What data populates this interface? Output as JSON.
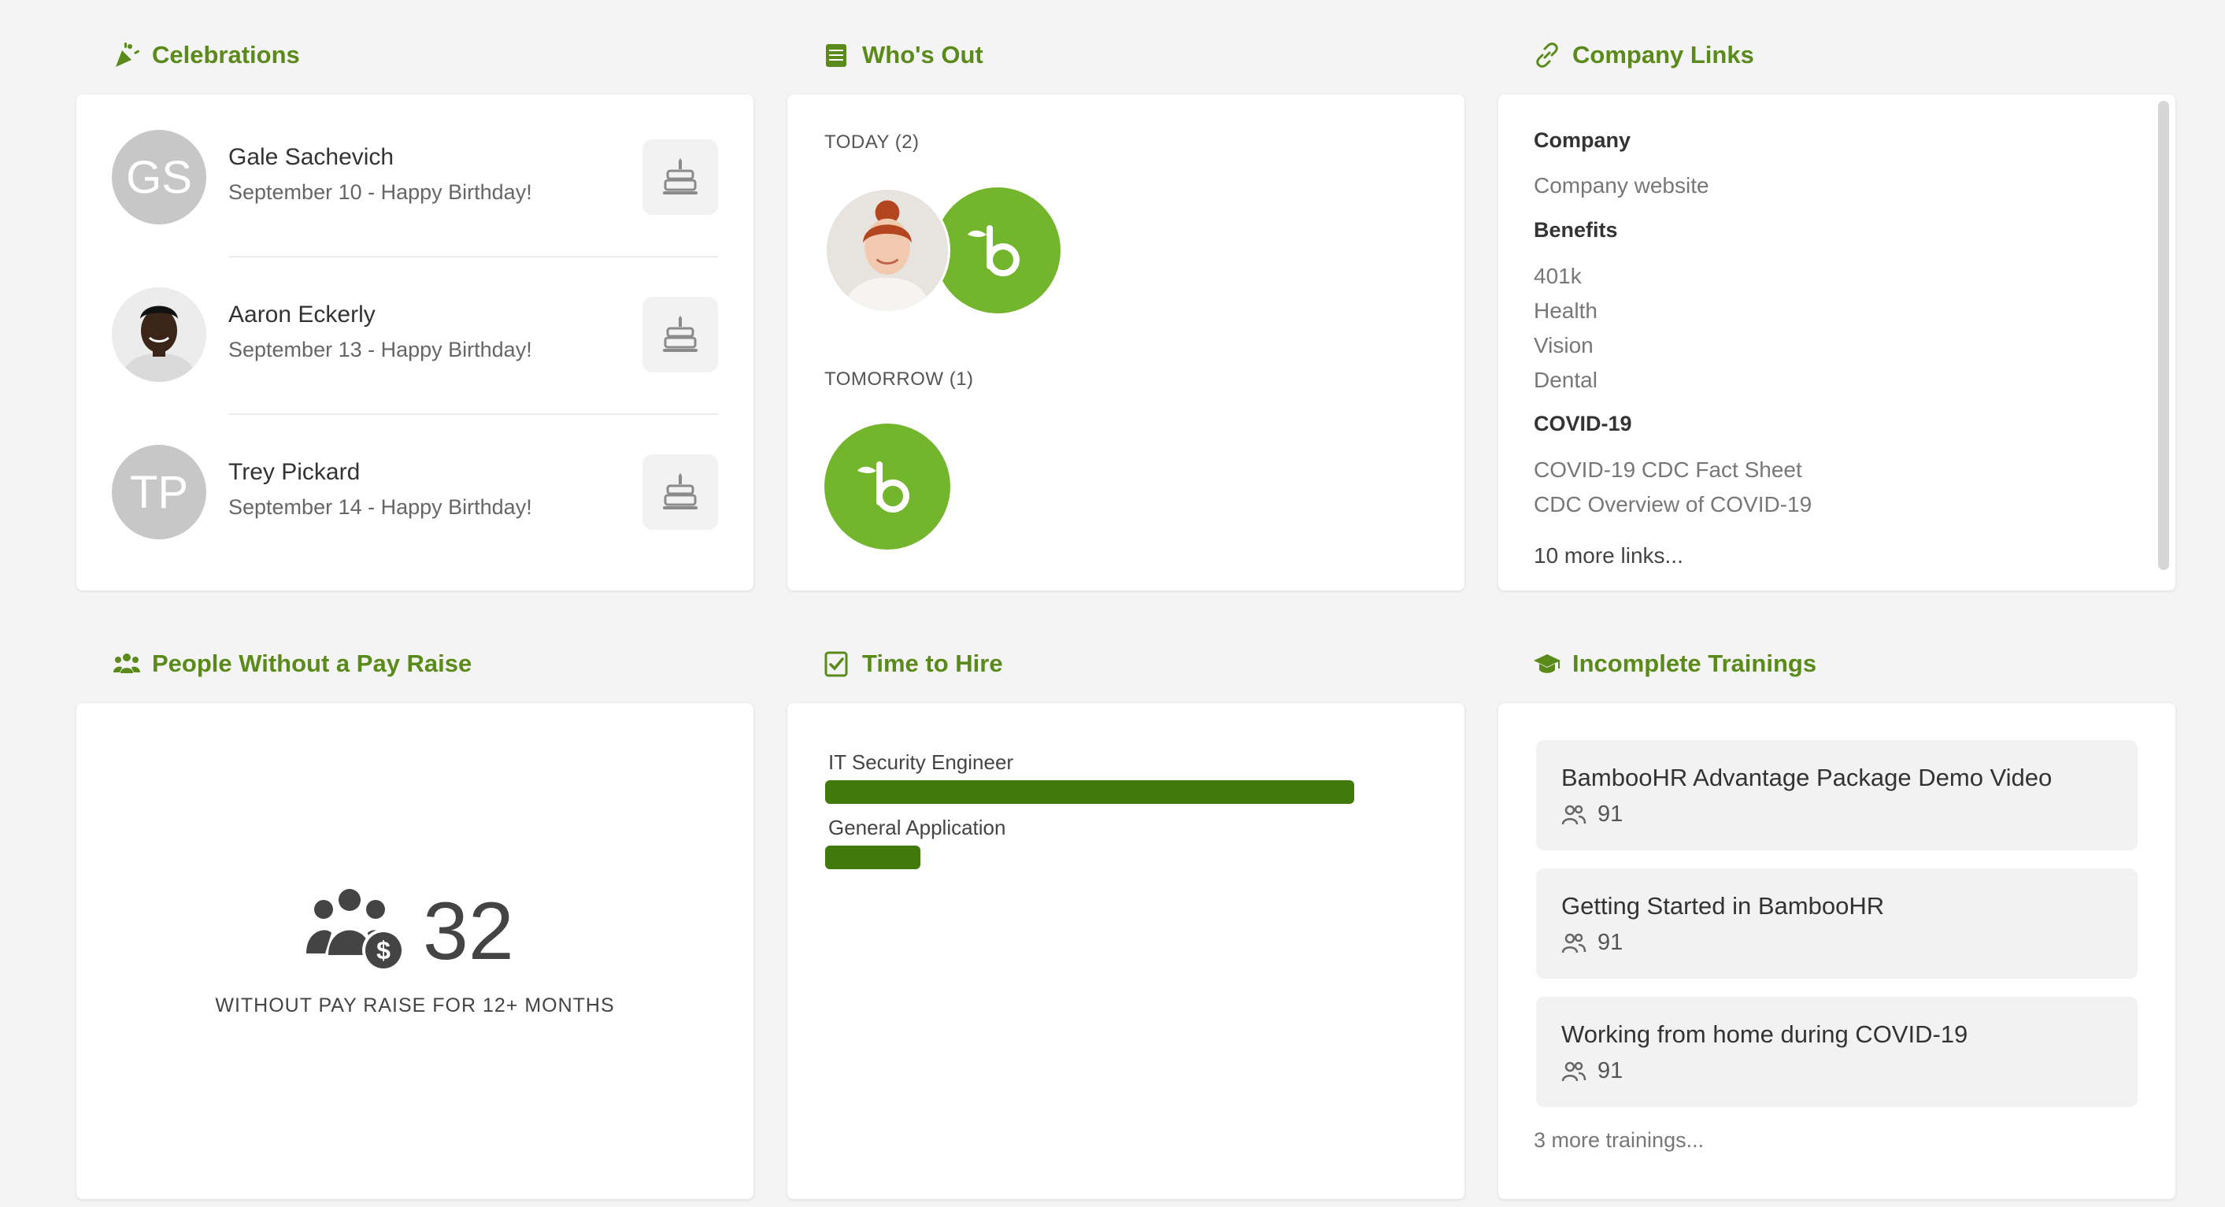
{
  "celebrations": {
    "title": "Celebrations",
    "items": [
      {
        "initials": "GS",
        "name": "Gale Sachevich",
        "date": "September 10 - Happy Birthday!"
      },
      {
        "initials": "",
        "name": "Aaron Eckerly",
        "date": "September 13 - Happy Birthday!"
      },
      {
        "initials": "TP",
        "name": "Trey Pickard",
        "date": "September 14 - Happy Birthday!"
      }
    ]
  },
  "whos_out": {
    "title": "Who's Out",
    "today_label": "TODAY (2)",
    "tomorrow_label": "TOMORROW (1)"
  },
  "company_links": {
    "title": "Company Links",
    "groups": [
      {
        "heading": "Company",
        "links": [
          "Company website"
        ]
      },
      {
        "heading": "Benefits",
        "links": [
          "401k",
          "Health",
          "Vision",
          "Dental"
        ]
      },
      {
        "heading": "COVID-19",
        "links": [
          "COVID-19 CDC Fact Sheet",
          "CDC Overview of COVID-19"
        ]
      }
    ],
    "more": "10 more links..."
  },
  "pay_raise": {
    "title": "People Without a Pay Raise",
    "count": "32",
    "caption": "WITHOUT PAY RAISE FOR 12+ MONTHS"
  },
  "time_to_hire": {
    "title": "Time to Hire",
    "bars": [
      {
        "label": "IT Security Engineer",
        "relative_value": 1.0
      },
      {
        "label": "General Application",
        "relative_value": 0.18
      }
    ]
  },
  "trainings": {
    "title": "Incomplete Trainings",
    "items": [
      {
        "name": "BambooHR Advantage Package Demo Video",
        "count": "91"
      },
      {
        "name": "Getting Started in BambooHR",
        "count": "91"
      },
      {
        "name": "Working from home during COVID-19",
        "count": "91"
      }
    ],
    "more": "3 more trainings..."
  },
  "colors": {
    "accent": "#5a8a1a",
    "bar": "#3f7a0b",
    "bamboo_badge": "#73b52c",
    "page_bg": "#f4f4f4"
  }
}
